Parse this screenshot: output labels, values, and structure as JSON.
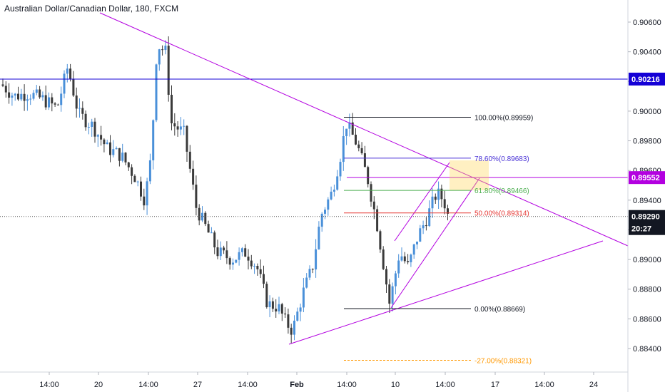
{
  "symbol_title": "Australian Dollar/Canadian Dollar, 180, FXCM",
  "chart_data": {
    "type": "candlestick",
    "title": "Australian Dollar/Canadian Dollar, 180, FXCM",
    "ylim": [
      0.883,
      0.907
    ],
    "y_ticks": [
      "0.90600",
      "0.90400",
      "0.90200",
      "0.90000",
      "0.89800",
      "0.89600",
      "0.89400",
      "0.89200",
      "0.89000",
      "0.88800",
      "0.88600",
      "0.88400"
    ],
    "x_ticks": [
      "14:00",
      "20",
      "14:00",
      "27",
      "14:00",
      "Feb",
      "14:00",
      "10",
      "14:00",
      "17",
      "14:00",
      "24"
    ],
    "price_badges": [
      {
        "label": "0.90216",
        "value": 0.90216,
        "color": "#1400d6"
      },
      {
        "label": "0.89552",
        "value": 0.89552,
        "color": "#b300e0"
      },
      {
        "label": "0.89290",
        "value": 0.8929,
        "color": "#131722"
      },
      {
        "label": "20:27",
        "value": 0.8921,
        "color": "#131722"
      }
    ],
    "fib_levels": [
      {
        "label": "100.00%(0.89959)",
        "value": 0.89959,
        "color": "#131722"
      },
      {
        "label": "78.60%(0.89683)",
        "value": 0.89683,
        "color": "#4a33d6"
      },
      {
        "label": "61.80%(0.89466)",
        "value": 0.89466,
        "color": "#4caf50"
      },
      {
        "label": "50.00%(0.89314)",
        "value": 0.89314,
        "color": "#e53935"
      },
      {
        "label": "0.00%(0.88669)",
        "value": 0.88669,
        "color": "#131722"
      },
      {
        "label": "-27.00%(0.88321)",
        "value": 0.88321,
        "color": "#ff9800"
      }
    ],
    "candles_hint": "approximate path of AUD/CAD 3h candles",
    "colors": {
      "up": "#4a90d9",
      "down": "#3a3a3a",
      "trend": "#b300e0",
      "hline_blue": "#1400d6"
    }
  }
}
